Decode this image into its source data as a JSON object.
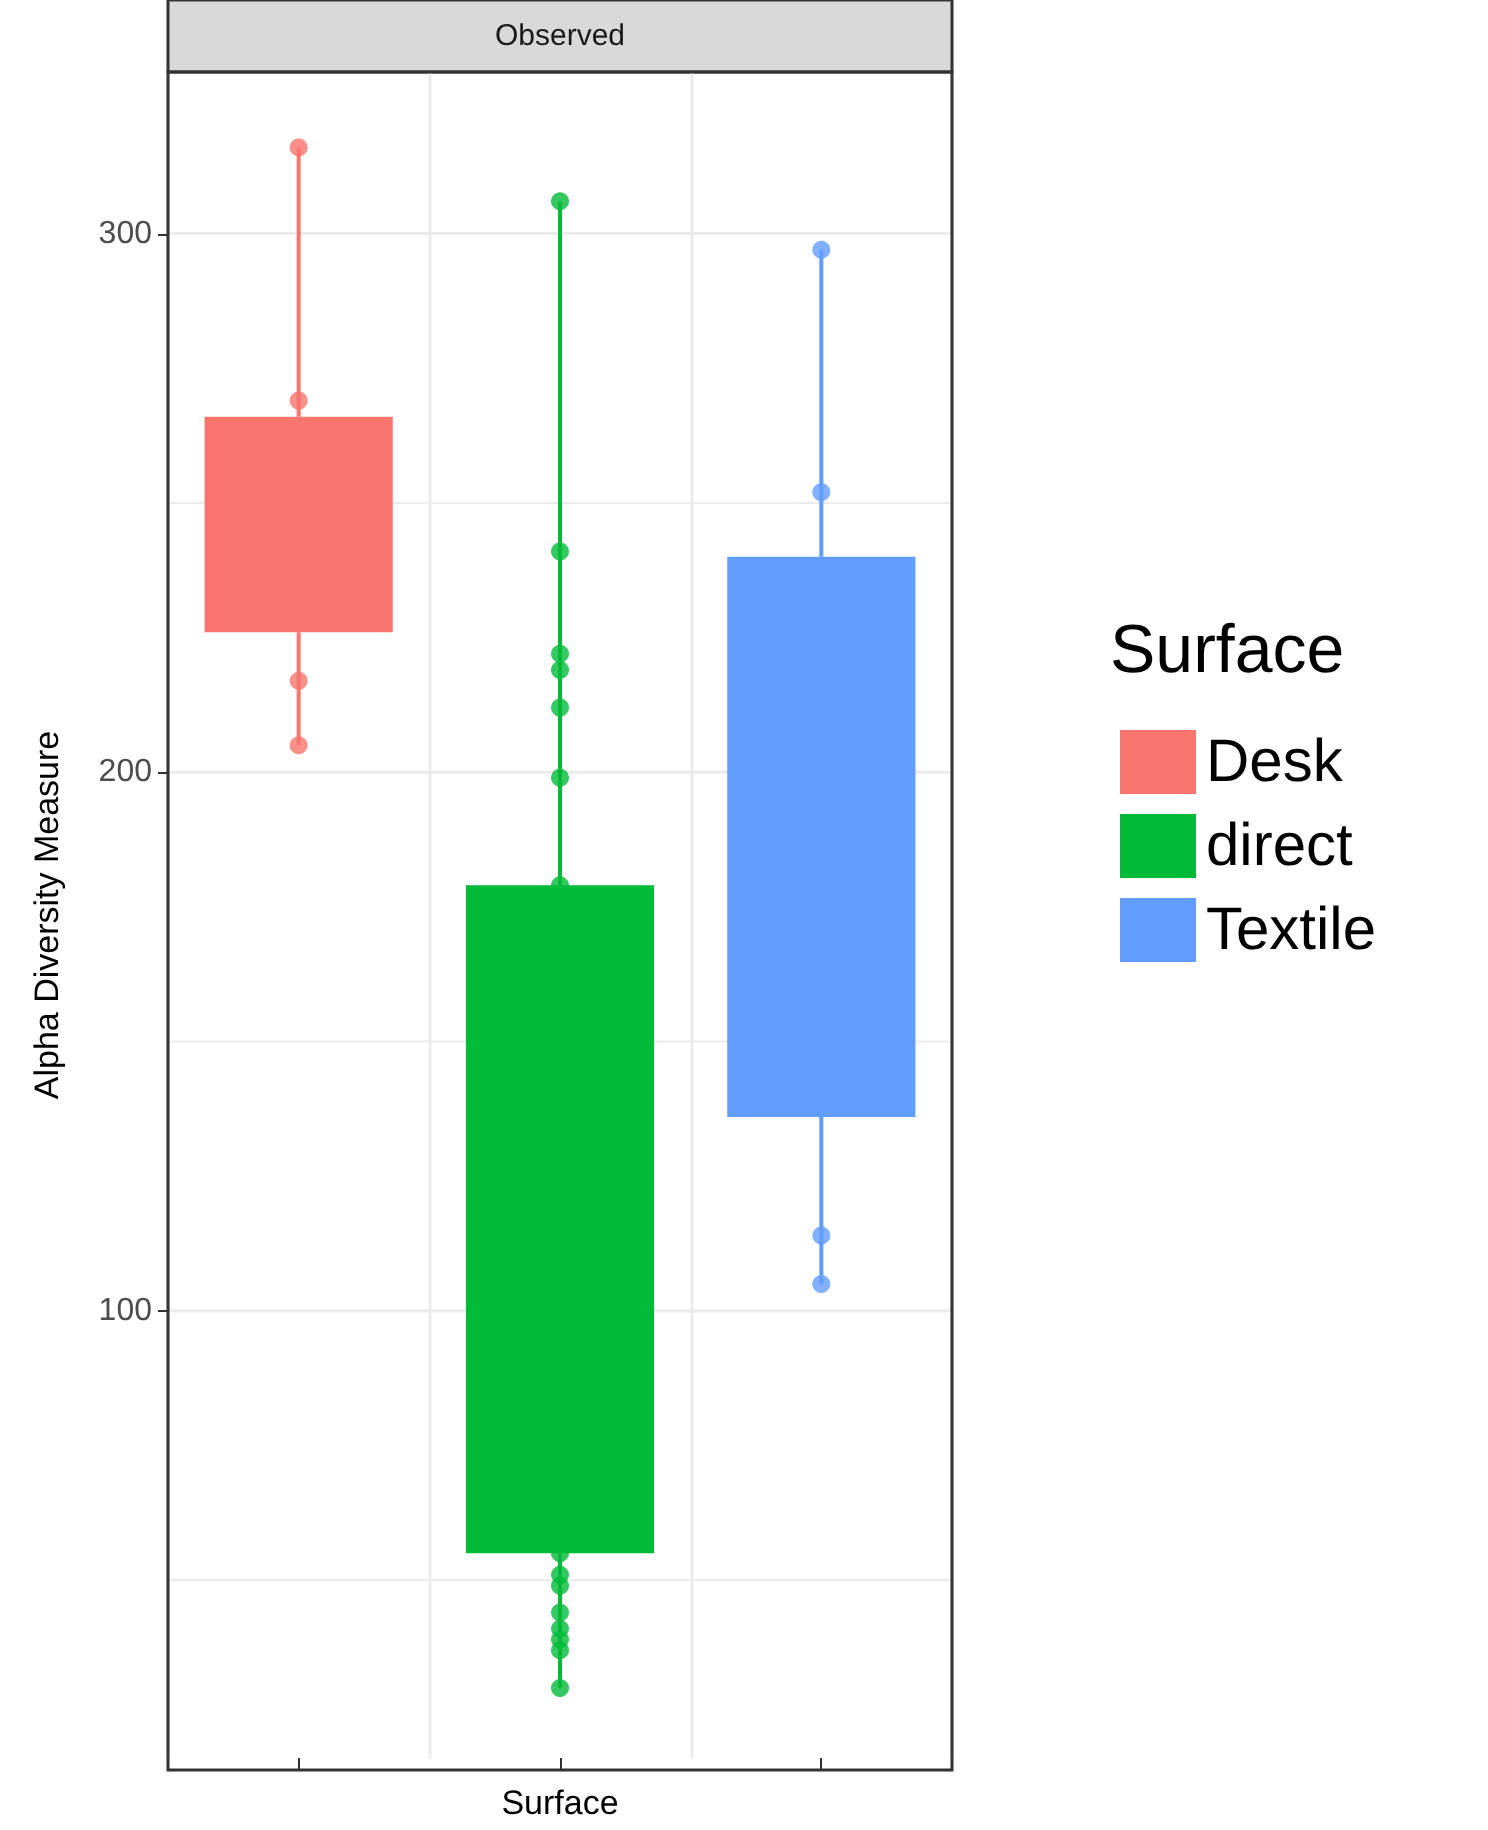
{
  "chart_data": {
    "type": "box",
    "title": "Observed",
    "ylabel": "Alpha Diversity Measure",
    "xlabel": "Surface",
    "legend_title": "Surface",
    "legend": "right",
    "grid": true,
    "tick_labels": "y",
    "marker": "circle",
    "categories": [
      null,
      null,
      null
    ],
    "ylim": [
      17,
      330
    ],
    "yticks": [
      {
        "value": 50,
        "label": null
      },
      100,
      {
        "value": 150,
        "label": null
      },
      200,
      {
        "value": 250,
        "label": null
      },
      300
    ],
    "series": [
      {
        "name": "Desk",
        "color": "#f8766d",
        "boxes": [
          {
            "low": 205,
            "q1": 226,
            "median": null,
            "q3": 266,
            "high": 316,
            "outliers": [
              316,
              269,
              217,
              205
            ]
          },
          null,
          null
        ]
      },
      {
        "name": "direct",
        "color": "#00ba38",
        "boxes": [
          null,
          {
            "low": 30,
            "q1": 55,
            "median": null,
            "q3": 179,
            "high": 306,
            "outliers": [
              306,
              241,
              222,
              219,
              212,
              199,
              179,
              55,
              51,
              49,
              44,
              41,
              39,
              37,
              30
            ]
          },
          null
        ]
      },
      {
        "name": "Textile",
        "color": "#619cff",
        "boxes": [
          null,
          null,
          {
            "low": 105,
            "q1": 136,
            "median": null,
            "q3": 240,
            "high": 297,
            "outliers": [
              297,
              252,
              114,
              105
            ]
          }
        ]
      }
    ]
  }
}
